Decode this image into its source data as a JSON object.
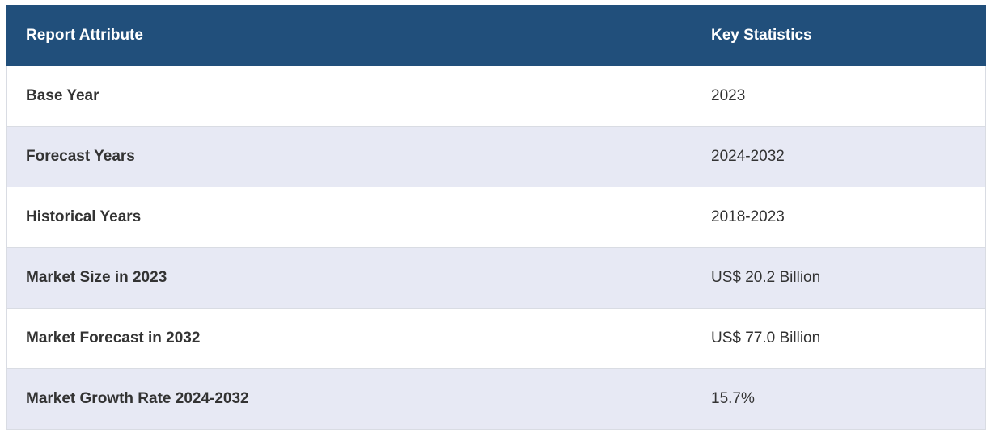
{
  "table": {
    "header": [
      "Report Attribute",
      "Key Statistics"
    ],
    "rows": [
      [
        "Base Year",
        "2023"
      ],
      [
        "Forecast Years",
        "2024-2032"
      ],
      [
        "Historical Years",
        "2018-2023"
      ],
      [
        "Market Size in 2023",
        "US$ 20.2 Billion"
      ],
      [
        "Market Forecast in 2032",
        "US$ 77.0 Billion"
      ],
      [
        "Market Growth Rate 2024-2032",
        "15.7%"
      ]
    ]
  }
}
